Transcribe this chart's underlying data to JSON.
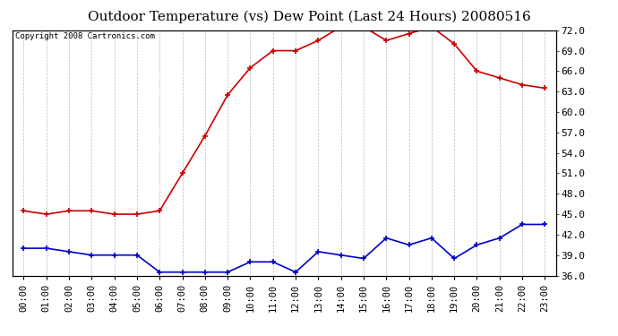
{
  "title": "Outdoor Temperature (vs) Dew Point (Last 24 Hours) 20080516",
  "copyright": "Copyright 2008 Cartronics.com",
  "x_labels": [
    "00:00",
    "01:00",
    "02:00",
    "03:00",
    "04:00",
    "05:00",
    "06:00",
    "07:00",
    "08:00",
    "09:00",
    "10:00",
    "11:00",
    "12:00",
    "13:00",
    "14:00",
    "15:00",
    "16:00",
    "17:00",
    "18:00",
    "19:00",
    "20:00",
    "21:00",
    "22:00",
    "23:00"
  ],
  "temp_red": [
    45.5,
    45.0,
    45.5,
    45.5,
    45.0,
    45.0,
    45.5,
    51.0,
    56.5,
    62.5,
    66.5,
    69.0,
    69.0,
    70.5,
    72.5,
    72.5,
    70.5,
    71.5,
    72.5,
    70.0,
    66.0,
    65.0,
    64.0,
    63.5
  ],
  "dew_blue": [
    40.0,
    40.0,
    39.5,
    39.0,
    39.0,
    39.0,
    36.5,
    36.5,
    36.5,
    36.5,
    38.0,
    38.0,
    36.5,
    39.5,
    39.0,
    38.5,
    41.5,
    40.5,
    41.5,
    38.5,
    40.5,
    41.5,
    43.5,
    43.5
  ],
  "ylim": [
    36.0,
    72.0
  ],
  "yticks": [
    36.0,
    39.0,
    42.0,
    45.0,
    48.0,
    51.0,
    54.0,
    57.0,
    60.0,
    63.0,
    66.0,
    69.0,
    72.0
  ],
  "red_color": "#cc0000",
  "blue_color": "#0000cc",
  "grid_color": "#bbbbbb",
  "bg_color": "#ffffff",
  "title_fontsize": 11,
  "copyright_fontsize": 6.5,
  "tick_fontsize": 7.5,
  "ylabel_fontsize": 8
}
